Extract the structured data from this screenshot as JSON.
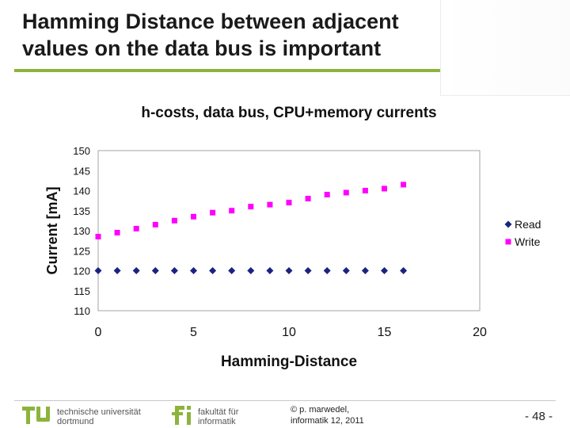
{
  "slide": {
    "title_line1": "Hamming Distance between adjacent",
    "title_line2": "values on the data bus is important"
  },
  "chart_data": {
    "type": "scatter",
    "title": "h-costs, data bus, CPU+memory currents",
    "xlabel": "Hamming-Distance",
    "ylabel": "Current [mA]",
    "xlim": [
      0,
      20
    ],
    "ylim": [
      110,
      150
    ],
    "x_ticks": [
      0,
      5,
      10,
      15,
      20
    ],
    "y_ticks": [
      110,
      115,
      120,
      125,
      130,
      135,
      140,
      145,
      150
    ],
    "grid": false,
    "legend_position": "right",
    "series": [
      {
        "name": "Read",
        "marker": "diamond",
        "color": "#1a237e",
        "x": [
          0,
          1,
          2,
          3,
          4,
          5,
          6,
          7,
          8,
          9,
          10,
          11,
          12,
          13,
          14,
          15,
          16
        ],
        "y": [
          120,
          120,
          120,
          120,
          120,
          120,
          120,
          120,
          120,
          120,
          120,
          120,
          120,
          120,
          120,
          120,
          120
        ]
      },
      {
        "name": "Write",
        "marker": "square",
        "color": "#ff00ff",
        "x": [
          0,
          1,
          2,
          3,
          4,
          5,
          6,
          7,
          8,
          9,
          10,
          11,
          12,
          13,
          14,
          15,
          16
        ],
        "y": [
          128.5,
          129.5,
          130.5,
          131.5,
          132.5,
          133.5,
          134.5,
          135,
          136,
          136.5,
          137,
          138,
          139,
          139.5,
          140,
          140.5,
          141.5
        ]
      }
    ]
  },
  "footer": {
    "tu_line1": "technische universität",
    "tu_line2": "dortmund",
    "fi_line1": "fakultät für",
    "fi_line2": "informatik",
    "copyright_line1": "© p. marwedel,",
    "copyright_line2": "informatik 12,  2011",
    "page": "-  48 -",
    "brand_green": "#8cb43c"
  }
}
